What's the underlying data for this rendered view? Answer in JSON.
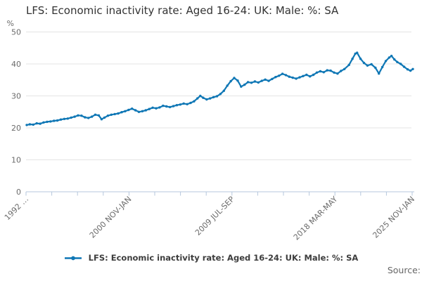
{
  "header": {
    "title": "LFS: Economic inactivity rate: Aged 16-24: UK: Male: %: SA"
  },
  "legend": {
    "label": "LFS: Economic inactivity rate: Aged 16-24: UK: Male: %: SA",
    "marker_icon": "line-with-dot"
  },
  "footer": {
    "source_label": "Source:"
  },
  "colors": {
    "line": "#0f77b5",
    "axis": "#b6c7dd",
    "grid": "#e4e4e4",
    "tick_text": "#6b6b6b",
    "title_text": "#333333"
  },
  "chart_data": {
    "type": "line",
    "title": "LFS: Economic inactivity rate: Aged 16-24: UK: Male: %: SA",
    "xlabel": "",
    "ylabel": "%",
    "ylim": [
      0,
      50
    ],
    "y_ticks": [
      0,
      10,
      20,
      30,
      40,
      50
    ],
    "x_domain": [
      1992.33,
      2025.96
    ],
    "x_tick_count": 16,
    "x_tick_labels": [
      {
        "tick": 0,
        "text": "1992 …"
      },
      {
        "tick": 4,
        "text": "2000 NOV-JAN"
      },
      {
        "tick": 8,
        "text": "2009 JUL-SEP"
      },
      {
        "tick": 12,
        "text": "2018 MAR-MAY"
      },
      {
        "tick": 15,
        "text": "2025 NOV-JAN"
      }
    ],
    "grid": "horizontal",
    "legend_position": "bottom",
    "series": [
      {
        "name": "LFS: Economic inactivity rate: Aged 16-24: UK: Male: %: SA",
        "color": "#0f77b5",
        "points": [
          [
            1992.33,
            20.9
          ],
          [
            1992.6,
            21.1
          ],
          [
            1992.9,
            21.0
          ],
          [
            1993.2,
            21.4
          ],
          [
            1993.5,
            21.3
          ],
          [
            1993.8,
            21.7
          ],
          [
            1994.1,
            21.9
          ],
          [
            1994.4,
            22.0
          ],
          [
            1994.7,
            22.2
          ],
          [
            1995.0,
            22.3
          ],
          [
            1995.3,
            22.6
          ],
          [
            1995.6,
            22.8
          ],
          [
            1995.9,
            22.9
          ],
          [
            1996.2,
            23.2
          ],
          [
            1996.5,
            23.5
          ],
          [
            1996.8,
            23.9
          ],
          [
            1997.1,
            23.8
          ],
          [
            1997.4,
            23.3
          ],
          [
            1997.7,
            23.1
          ],
          [
            1998.0,
            23.5
          ],
          [
            1998.3,
            24.1
          ],
          [
            1998.6,
            23.9
          ],
          [
            1998.85,
            22.7
          ],
          [
            1999.1,
            23.2
          ],
          [
            1999.4,
            23.8
          ],
          [
            1999.7,
            24.1
          ],
          [
            2000.0,
            24.3
          ],
          [
            2000.3,
            24.5
          ],
          [
            2000.6,
            24.9
          ],
          [
            2000.9,
            25.2
          ],
          [
            2001.2,
            25.6
          ],
          [
            2001.5,
            26.0
          ],
          [
            2001.8,
            25.5
          ],
          [
            2002.1,
            25.0
          ],
          [
            2002.4,
            25.2
          ],
          [
            2002.7,
            25.5
          ],
          [
            2003.0,
            25.9
          ],
          [
            2003.3,
            26.3
          ],
          [
            2003.6,
            26.1
          ],
          [
            2003.9,
            26.4
          ],
          [
            2004.2,
            26.9
          ],
          [
            2004.5,
            26.7
          ],
          [
            2004.8,
            26.5
          ],
          [
            2005.1,
            26.8
          ],
          [
            2005.4,
            27.1
          ],
          [
            2005.7,
            27.3
          ],
          [
            2006.0,
            27.6
          ],
          [
            2006.3,
            27.4
          ],
          [
            2006.6,
            27.8
          ],
          [
            2006.9,
            28.3
          ],
          [
            2007.2,
            29.2
          ],
          [
            2007.45,
            30.0
          ],
          [
            2007.7,
            29.4
          ],
          [
            2008.0,
            28.9
          ],
          [
            2008.3,
            29.2
          ],
          [
            2008.6,
            29.6
          ],
          [
            2008.9,
            29.9
          ],
          [
            2009.2,
            30.6
          ],
          [
            2009.5,
            31.6
          ],
          [
            2009.8,
            33.2
          ],
          [
            2010.1,
            34.6
          ],
          [
            2010.4,
            35.6
          ],
          [
            2010.7,
            34.8
          ],
          [
            2011.0,
            32.9
          ],
          [
            2011.3,
            33.5
          ],
          [
            2011.6,
            34.3
          ],
          [
            2011.9,
            34.1
          ],
          [
            2012.2,
            34.5
          ],
          [
            2012.5,
            34.2
          ],
          [
            2012.8,
            34.7
          ],
          [
            2013.1,
            35.1
          ],
          [
            2013.4,
            34.7
          ],
          [
            2013.7,
            35.3
          ],
          [
            2014.0,
            35.9
          ],
          [
            2014.3,
            36.3
          ],
          [
            2014.6,
            36.9
          ],
          [
            2014.9,
            36.5
          ],
          [
            2015.2,
            36.0
          ],
          [
            2015.5,
            35.7
          ],
          [
            2015.8,
            35.4
          ],
          [
            2016.1,
            35.8
          ],
          [
            2016.4,
            36.2
          ],
          [
            2016.7,
            36.6
          ],
          [
            2017.0,
            36.1
          ],
          [
            2017.3,
            36.6
          ],
          [
            2017.6,
            37.3
          ],
          [
            2017.9,
            37.7
          ],
          [
            2018.2,
            37.4
          ],
          [
            2018.5,
            38.0
          ],
          [
            2018.8,
            37.9
          ],
          [
            2019.1,
            37.3
          ],
          [
            2019.4,
            37.0
          ],
          [
            2019.7,
            37.8
          ],
          [
            2020.0,
            38.4
          ],
          [
            2020.4,
            39.7
          ],
          [
            2020.7,
            41.6
          ],
          [
            2020.95,
            43.2
          ],
          [
            2021.1,
            43.5
          ],
          [
            2021.4,
            41.6
          ],
          [
            2021.7,
            40.3
          ],
          [
            2022.0,
            39.5
          ],
          [
            2022.35,
            39.9
          ],
          [
            2022.7,
            38.8
          ],
          [
            2023.0,
            37.0
          ],
          [
            2023.3,
            39.0
          ],
          [
            2023.6,
            40.9
          ],
          [
            2023.9,
            42.0
          ],
          [
            2024.1,
            42.5
          ],
          [
            2024.35,
            41.4
          ],
          [
            2024.6,
            40.6
          ],
          [
            2024.9,
            40.0
          ],
          [
            2025.2,
            39.1
          ],
          [
            2025.5,
            38.3
          ],
          [
            2025.75,
            37.9
          ],
          [
            2025.96,
            38.4
          ]
        ]
      }
    ]
  }
}
